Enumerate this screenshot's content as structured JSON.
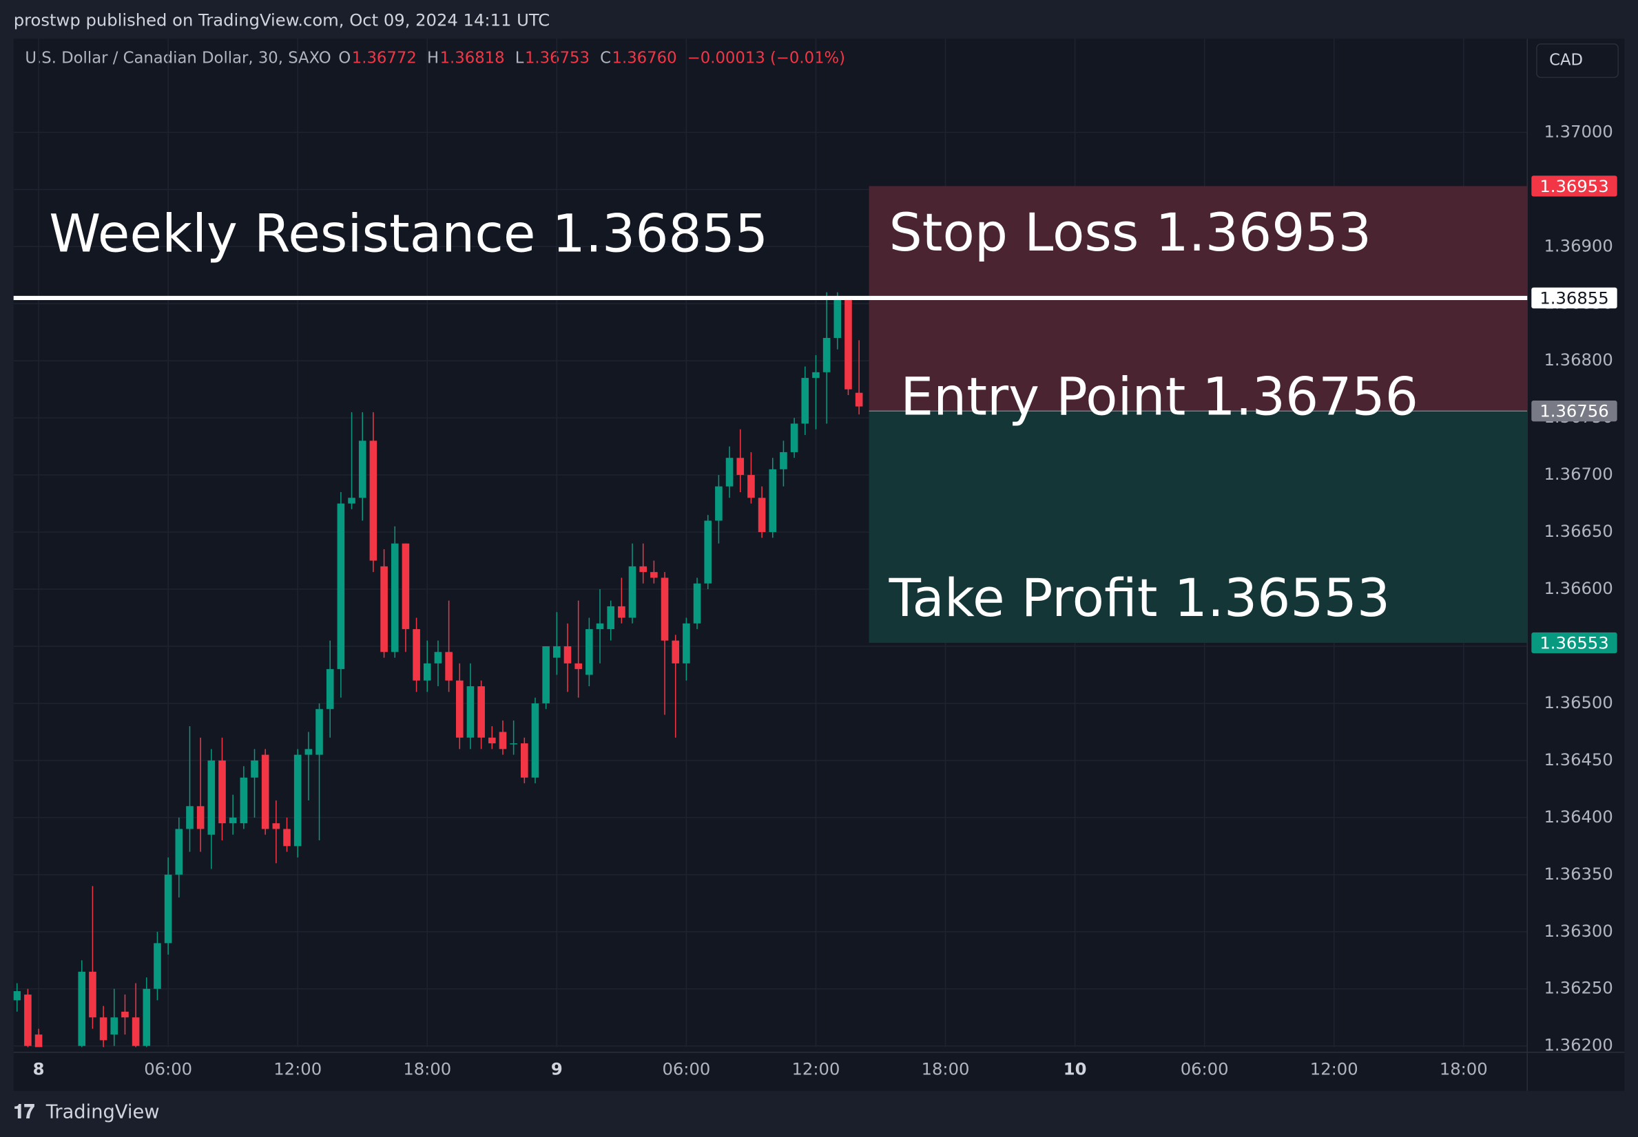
{
  "header": {
    "publisher": "prostwp published on TradingView.com, Oct 09, 2024 14:11 UTC",
    "symbol": "U.S. Dollar / Canadian Dollar, 30, SAXO",
    "legend": [
      {
        "key": "O",
        "value": "1.36772"
      },
      {
        "key": "H",
        "value": "1.36818"
      },
      {
        "key": "L",
        "value": "1.36753"
      },
      {
        "key": "C",
        "value": "1.36760"
      }
    ],
    "change": "−0.00013 (−0.01%)",
    "currency": "CAD"
  },
  "footer": {
    "brand": "TradingView"
  },
  "chart_data": {
    "type": "candlestick",
    "up_color": "#089981",
    "down_color": "#f23645",
    "grid": true,
    "x": [
      -1,
      -0.5,
      0,
      2,
      2.5,
      3,
      3.5,
      4,
      4.5,
      5,
      5.5,
      6,
      6.5,
      7,
      7.5,
      8,
      8.5,
      9,
      9.5,
      10,
      10.5,
      11,
      11.5,
      12,
      12.5,
      13,
      13.5,
      14,
      14.5,
      15,
      15.5,
      16,
      16.5,
      17,
      17.5,
      18,
      18.5,
      19,
      19.5,
      20,
      20.5,
      21,
      21.5,
      22,
      22.5,
      23,
      23.5,
      24,
      24.5,
      25,
      25.5,
      26,
      26.5,
      27,
      27.5,
      28,
      28.5,
      29,
      29.5,
      30,
      30.5,
      31,
      31.5,
      32,
      32.5,
      33,
      33.5,
      34,
      34.5,
      35,
      35.5,
      36,
      36.5,
      37,
      37.5,
      38
    ],
    "open": [
      1.3624,
      1.36245,
      1.3621,
      1.362,
      1.36265,
      1.36225,
      1.3621,
      1.3623,
      1.36225,
      1.362,
      1.3625,
      1.3629,
      1.3635,
      1.3639,
      1.3641,
      1.36385,
      1.3645,
      1.36395,
      1.36395,
      1.36435,
      1.36455,
      1.36395,
      1.3639,
      1.36375,
      1.36455,
      1.36455,
      1.36495,
      1.3653,
      1.36675,
      1.3668,
      1.3673,
      1.3662,
      1.36545,
      1.3664,
      1.36565,
      1.3652,
      1.36535,
      1.36545,
      1.3652,
      1.3647,
      1.36515,
      1.3647,
      1.36475,
      1.36465,
      1.36465,
      1.36435,
      1.365,
      1.3654,
      1.3655,
      1.36535,
      1.36525,
      1.36565,
      1.36565,
      1.36585,
      1.36575,
      1.3662,
      1.36615,
      1.3661,
      1.36555,
      1.36535,
      1.3657,
      1.36605,
      1.3666,
      1.3669,
      1.36715,
      1.367,
      1.3668,
      1.3665,
      1.36705,
      1.3672,
      1.36745,
      1.36785,
      1.3679,
      1.3682,
      1.36855,
      1.36772
    ],
    "high": [
      1.36255,
      1.3625,
      1.36215,
      1.36275,
      1.3634,
      1.36235,
      1.3625,
      1.36245,
      1.36255,
      1.3626,
      1.363,
      1.36365,
      1.364,
      1.3648,
      1.3647,
      1.3646,
      1.3647,
      1.3642,
      1.36445,
      1.3646,
      1.3646,
      1.36415,
      1.364,
      1.3646,
      1.36475,
      1.365,
      1.36555,
      1.36685,
      1.36755,
      1.36755,
      1.36755,
      1.36635,
      1.36655,
      1.3664,
      1.36575,
      1.36555,
      1.36555,
      1.3659,
      1.36535,
      1.36535,
      1.3652,
      1.3648,
      1.36485,
      1.36485,
      1.3647,
      1.36505,
      1.3655,
      1.3658,
      1.3657,
      1.3659,
      1.36575,
      1.366,
      1.3659,
      1.3661,
      1.3664,
      1.3664,
      1.36625,
      1.36615,
      1.3656,
      1.36575,
      1.3661,
      1.36665,
      1.367,
      1.36725,
      1.3674,
      1.3672,
      1.3669,
      1.36715,
      1.3673,
      1.3675,
      1.36795,
      1.36805,
      1.3686,
      1.3686,
      1.36855,
      1.36818
    ],
    "low": [
      1.3623,
      1.3619,
      1.36185,
      1.36195,
      1.36215,
      1.3619,
      1.362,
      1.3621,
      1.36195,
      1.3619,
      1.3624,
      1.3628,
      1.3633,
      1.3637,
      1.3637,
      1.36355,
      1.3638,
      1.36385,
      1.3639,
      1.364,
      1.36385,
      1.3636,
      1.3637,
      1.36365,
      1.36415,
      1.3638,
      1.3647,
      1.36505,
      1.3667,
      1.3666,
      1.36615,
      1.3654,
      1.3654,
      1.36545,
      1.3651,
      1.3651,
      1.36515,
      1.3651,
      1.3646,
      1.3646,
      1.3646,
      1.3646,
      1.36455,
      1.36455,
      1.3643,
      1.3643,
      1.36495,
      1.36525,
      1.3651,
      1.36505,
      1.36515,
      1.36535,
      1.36555,
      1.3657,
      1.3657,
      1.36605,
      1.36605,
      1.3649,
      1.3647,
      1.3652,
      1.36565,
      1.366,
      1.3664,
      1.3668,
      1.36685,
      1.36675,
      1.36645,
      1.36645,
      1.3669,
      1.36715,
      1.36735,
      1.3674,
      1.36745,
      1.3681,
      1.3677,
      1.36753
    ],
    "close": [
      1.36248,
      1.362,
      1.36195,
      1.36265,
      1.36225,
      1.36205,
      1.36225,
      1.36225,
      1.362,
      1.3625,
      1.3629,
      1.3635,
      1.3639,
      1.3641,
      1.3639,
      1.3645,
      1.36395,
      1.364,
      1.36435,
      1.3645,
      1.3639,
      1.3639,
      1.36375,
      1.36455,
      1.3646,
      1.36495,
      1.3653,
      1.36675,
      1.3668,
      1.3673,
      1.36625,
      1.36545,
      1.3664,
      1.36565,
      1.3652,
      1.36535,
      1.36545,
      1.3652,
      1.3647,
      1.36515,
      1.3647,
      1.36465,
      1.3646,
      1.36465,
      1.36435,
      1.365,
      1.3655,
      1.3655,
      1.36535,
      1.3653,
      1.36565,
      1.3657,
      1.36585,
      1.36575,
      1.3662,
      1.36615,
      1.3661,
      1.36555,
      1.36535,
      1.3657,
      1.36605,
      1.3666,
      1.3669,
      1.36715,
      1.367,
      1.3668,
      1.3665,
      1.36705,
      1.3672,
      1.36745,
      1.36785,
      1.3679,
      1.3682,
      1.36855,
      1.36775,
      1.3676
    ],
    "xlim": [
      -1.16,
      68.95
    ],
    "xticks": [
      {
        "value": 0,
        "label": "8"
      },
      {
        "value": 6,
        "label": "06:00"
      },
      {
        "value": 12,
        "label": "12:00"
      },
      {
        "value": 18,
        "label": "18:00"
      },
      {
        "value": 24,
        "label": "9"
      },
      {
        "value": 30,
        "label": "06:00"
      },
      {
        "value": 36,
        "label": "12:00"
      },
      {
        "value": 42,
        "label": "18:00"
      },
      {
        "value": 48,
        "label": "10"
      },
      {
        "value": 54,
        "label": "06:00"
      },
      {
        "value": 60,
        "label": "12:00"
      },
      {
        "value": 66,
        "label": "18:00"
      }
    ],
    "ylim": [
      1.36199,
      1.37082
    ],
    "yticks": [
      {
        "value": 1.362,
        "label": "1.36200"
      },
      {
        "value": 1.3625,
        "label": "1.36250"
      },
      {
        "value": 1.363,
        "label": "1.36300"
      },
      {
        "value": 1.3635,
        "label": "1.36350"
      },
      {
        "value": 1.364,
        "label": "1.36400"
      },
      {
        "value": 1.3645,
        "label": "1.36450"
      },
      {
        "value": 1.365,
        "label": "1.36500"
      },
      {
        "value": 1.3655,
        "label": "1.36550"
      },
      {
        "value": 1.366,
        "label": "1.36600"
      },
      {
        "value": 1.3665,
        "label": "1.36650"
      },
      {
        "value": 1.367,
        "label": "1.36700"
      },
      {
        "value": 1.3675,
        "label": "1.36750"
      },
      {
        "value": 1.368,
        "label": "1.36800"
      },
      {
        "value": 1.3685,
        "label": "1.36850"
      },
      {
        "value": 1.369,
        "label": "1.36900"
      },
      {
        "value": 1.3695,
        "label": "1.36950"
      },
      {
        "value": 1.37,
        "label": "1.37000"
      }
    ],
    "resistance": {
      "value": 1.36855,
      "label": "Weekly Resistance 1.36855",
      "color": "#ffffff"
    },
    "position": {
      "start": 38.46,
      "stop": 1.36953,
      "entry": 1.36756,
      "target": 1.36553,
      "stop_label": "Stop Loss 1.36953",
      "entry_label": "Entry Point 1.36756",
      "target_label": "Take Profit 1.36553",
      "stop_color": "#4a2430",
      "target_color": "#153637"
    },
    "price_tags": [
      {
        "value": 1.36953,
        "color": "#f23645"
      },
      {
        "value": 1.36855,
        "color": "#ffffff"
      },
      {
        "value": 1.36756,
        "color": "#787b86"
      },
      {
        "value": 1.36553,
        "color": "#089981"
      }
    ]
  }
}
